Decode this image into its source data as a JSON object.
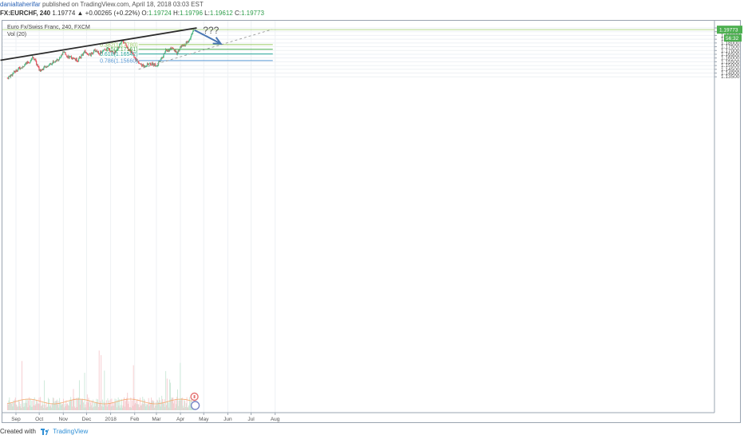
{
  "header": {
    "author": "danialtaherifar",
    "published_text": "published on TradingView.com, April 18, 2018 03:03 EST",
    "symbol": "FX:EURCHF, 240",
    "change": "1.19774 ▲ +0.00265 (+0.22%)",
    "ohlc": {
      "open_label": "O:",
      "open": "1.19724",
      "high_label": "H:",
      "high": "1.19796",
      "low_label": "L:",
      "low": "1.19612",
      "close_label": "C:",
      "close": "1.19773"
    }
  },
  "legend": {
    "title": "Euro Fx/Swiss Franc, 240, FXCM",
    "indicator": "Vol (20)"
  },
  "footer": {
    "created_with": "Created with",
    "brand": "TradingView"
  },
  "colors": {
    "candle_up": "#53b987",
    "candle_down": "#eb4d5c",
    "trendline": "#2a2a2a",
    "arrow": "#4a77b4",
    "fib_0382": "#9ccc65",
    "fib_05": "#4caf50",
    "fib_0618": "#26a69a",
    "fib_0786": "#5b9bd5",
    "price_tag": "#4caf50",
    "countdown_tag": "#4caf50"
  },
  "chart_data": {
    "type": "candlestick",
    "symbol": "EURCHF",
    "interval": "240",
    "x_labels": [
      "Sep",
      "Oct",
      "Nov",
      "Dec",
      "2018",
      "Feb",
      "Mar",
      "Apr",
      "May",
      "Jun",
      "Jul",
      "Aug"
    ],
    "y_ticks": [
      "1.20000",
      "1.19500",
      "1.19000",
      "1.18500",
      "1.18000",
      "1.17500",
      "1.17000",
      "1.16500",
      "1.16000",
      "1.15500",
      "1.15000",
      "1.14500",
      "1.14000",
      "1.13500"
    ],
    "ylim": [
      1.1325,
      1.2015
    ],
    "price_path": [
      [
        "2017-08-21",
        1.1335
      ],
      [
        "2017-09-05",
        1.1465
      ],
      [
        "2017-09-18",
        1.1545
      ],
      [
        "2017-09-23",
        1.162
      ],
      [
        "2017-10-02",
        1.143
      ],
      [
        "2017-10-16",
        1.153
      ],
      [
        "2017-10-28",
        1.16
      ],
      [
        "2017-11-01",
        1.1675
      ],
      [
        "2017-11-08",
        1.1615
      ],
      [
        "2017-11-20",
        1.157
      ],
      [
        "2017-11-28",
        1.168
      ],
      [
        "2017-12-06",
        1.164
      ],
      [
        "2017-12-12",
        1.1705
      ],
      [
        "2017-12-18",
        1.1665
      ],
      [
        "2017-12-28",
        1.172
      ],
      [
        "2018-01-06",
        1.167
      ],
      [
        "2018-01-12",
        1.1765
      ],
      [
        "2018-01-16",
        1.183
      ],
      [
        "2018-01-23",
        1.174
      ],
      [
        "2018-01-30",
        1.164
      ],
      [
        "2018-02-06",
        1.1535
      ],
      [
        "2018-02-12",
        1.149
      ],
      [
        "2018-02-20",
        1.1525
      ],
      [
        "2018-03-02",
        1.1505
      ],
      [
        "2018-03-06",
        1.156
      ],
      [
        "2018-03-13",
        1.17
      ],
      [
        "2018-03-22",
        1.172
      ],
      [
        "2018-03-27",
        1.166
      ],
      [
        "2018-04-02",
        1.176
      ],
      [
        "2018-04-08",
        1.179
      ],
      [
        "2018-04-13",
        1.185
      ],
      [
        "2018-04-18",
        1.1977
      ]
    ],
    "last_price": "1.19773",
    "countdown": "56:32",
    "fib_levels": [
      {
        "label": "0.382(1.17780)",
        "value": 1.1778
      },
      {
        "label": "0.5(1.17161)",
        "value": 1.17161
      },
      {
        "label": "0.618(1.16542)",
        "value": 1.16542
      },
      {
        "label": "0.786(1.15660)",
        "value": 1.1566
      }
    ],
    "annotation_text": "???",
    "resistance_line": [
      [
        "2017-08-12",
        1.157
      ],
      [
        "2018-04-22",
        1.2
      ]
    ],
    "support_line": [
      [
        "2018-02-06",
        1.145
      ],
      [
        "2018-07-28",
        1.198
      ]
    ],
    "projection_arrow": [
      [
        "2018-04-19",
        1.1972
      ],
      [
        "2018-05-23",
        1.179
      ]
    ],
    "volume_indicator": "Vol (20)",
    "grid": true
  }
}
